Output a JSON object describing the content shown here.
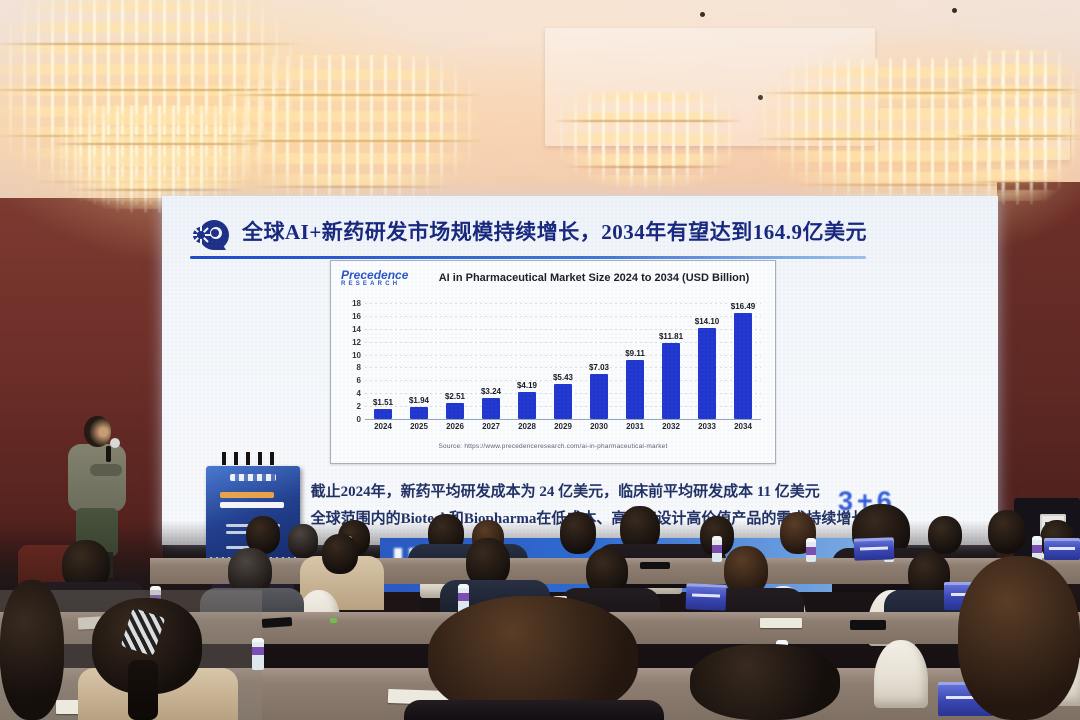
{
  "slide": {
    "header_icon": "ai-brain-icon",
    "title": "全球AI+新药研发市场规模持续增长，2034年有望达到164.9亿美元",
    "bullet_marker": "•",
    "bullets": [
      "截止2024年，新药平均研发成本为 24 亿美元，临床前平均研发成本 11 亿美元",
      "全球范围内的Biotech和Biopharma在低成本、高效率设计高价值产品的需求持续增长"
    ],
    "overlay_fragment": "3+6"
  },
  "chart_data": {
    "type": "bar",
    "logo_line1": "Precedence",
    "logo_line2": "RESEARCH",
    "title": "AI in Pharmaceutical Market Size 2024 to 2034 (USD Billion)",
    "categories": [
      "2024",
      "2025",
      "2026",
      "2027",
      "2028",
      "2029",
      "2030",
      "2031",
      "2032",
      "2033",
      "2034"
    ],
    "values": [
      1.51,
      1.94,
      2.51,
      3.24,
      4.19,
      5.43,
      7.03,
      9.11,
      11.81,
      14.1,
      16.49
    ],
    "labels": [
      "$1.51",
      "$1.94",
      "$2.51",
      "$3.24",
      "$4.19",
      "$5.43",
      "$7.03",
      "$9.11",
      "$11.81",
      "$14.10",
      "$16.49"
    ],
    "xlabel": "",
    "ylabel": "",
    "ylim": [
      0,
      18
    ],
    "ytick_step": 2,
    "grid": true,
    "legend": "none",
    "bar_color": "#2135cf",
    "source": "Source: https://www.precedenceresearch.com/ai-in-pharmaceutical-market"
  },
  "colors": {
    "slide_title": "#17277e",
    "bar_blue": "#2135cf",
    "wall_maroon": "#6e2f29",
    "bottle_label_purple": "#7b4fb2",
    "led_band_blue": "#2f6ad0"
  }
}
